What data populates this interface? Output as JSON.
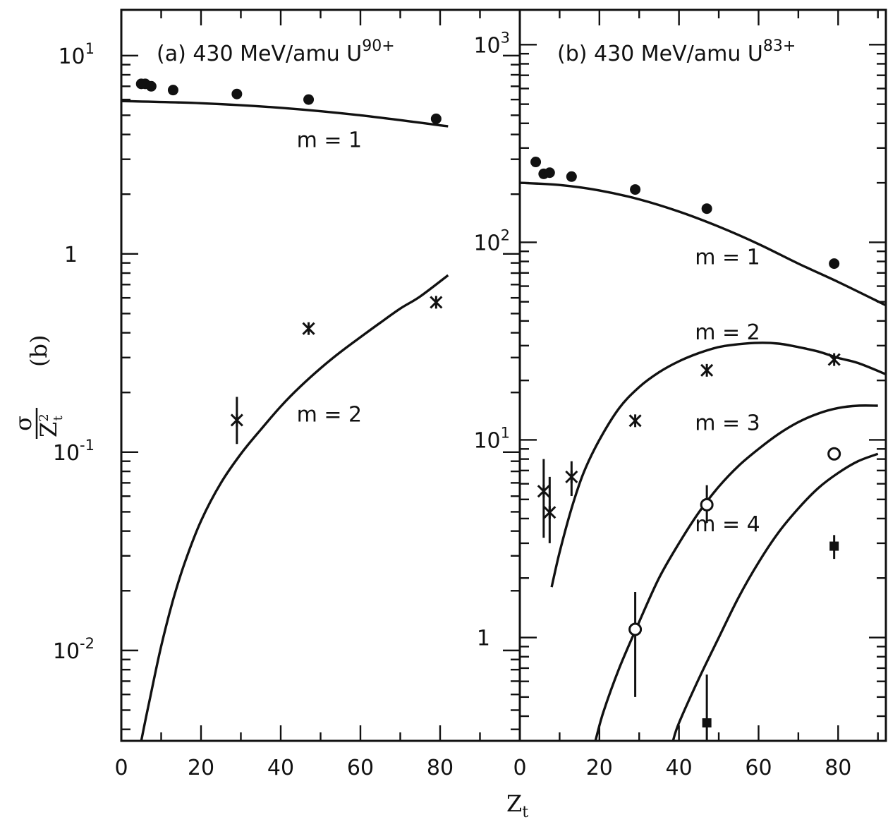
{
  "chart_data": [
    {
      "type": "scatter",
      "panel": "a",
      "title": "(a) 430 MeV/amu U",
      "title_sup": "90+",
      "xlabel": "Z",
      "xlabel_sub": "t",
      "ylabel": "(b)",
      "ylabel_fraction": {
        "numerator": "σ",
        "denominator": "Z",
        "denominator_sup": "2",
        "denominator_sub": "t"
      },
      "xlim": [
        0,
        100
      ],
      "ylim": [
        0.0035,
        17
      ],
      "yscale": "log",
      "xticks": [
        {
          "v": 0,
          "label": "0"
        },
        {
          "v": 20,
          "label": "20"
        },
        {
          "v": 40,
          "label": "40"
        },
        {
          "v": 60,
          "label": "60"
        },
        {
          "v": 80,
          "label": "80"
        }
      ],
      "yticks": [
        {
          "v": 0.01,
          "base": "10",
          "exp": "-2"
        },
        {
          "v": 0.1,
          "base": "10",
          "exp": "-1"
        },
        {
          "v": 1,
          "base": "1",
          "exp": ""
        },
        {
          "v": 10,
          "base": "10",
          "exp": "1"
        }
      ],
      "curves": [
        {
          "name": "m = 1",
          "x": [
            0,
            20,
            40,
            60,
            82
          ],
          "y": [
            5.9,
            5.75,
            5.45,
            5.0,
            4.4
          ]
        },
        {
          "name": "m = 2",
          "x": [
            5,
            7,
            10,
            13,
            16,
            20,
            25,
            30,
            35,
            40,
            45,
            50,
            55,
            60,
            65,
            70,
            75,
            82
          ],
          "y": [
            0.0035,
            0.0055,
            0.0105,
            0.018,
            0.028,
            0.045,
            0.07,
            0.098,
            0.13,
            0.17,
            0.215,
            0.265,
            0.32,
            0.38,
            0.45,
            0.53,
            0.61,
            0.78
          ]
        }
      ],
      "series": [
        {
          "name": "m = 1",
          "marker": "filled-circle",
          "points": [
            {
              "x": 5,
              "y": 7.2
            },
            {
              "x": 6,
              "y": 7.2
            },
            {
              "x": 7.5,
              "y": 7.0
            },
            {
              "x": 13,
              "y": 6.7
            },
            {
              "x": 29,
              "y": 6.4
            },
            {
              "x": 47,
              "y": 6.0
            },
            {
              "x": 79,
              "y": 4.8
            }
          ]
        },
        {
          "name": "m = 2",
          "marker": "asterisk",
          "points": [
            {
              "x": 29,
              "y": 0.145,
              "yerr": [
                0.11,
                0.19
              ]
            },
            {
              "x": 47,
              "y": 0.42
            },
            {
              "x": 79,
              "y": 0.57
            }
          ]
        }
      ],
      "annotations": [
        {
          "label": "m = 1",
          "x": 44,
          "y": 3.75
        },
        {
          "label": "m = 2",
          "x": 44,
          "y": 0.155
        }
      ]
    },
    {
      "type": "scatter",
      "panel": "b",
      "title": "(b) 430 MeV/amu U",
      "title_sup": "83+",
      "xlabel": "Z",
      "xlabel_sub": "t",
      "xlim": [
        0,
        92
      ],
      "ylim": [
        0.3,
        1500
      ],
      "yscale": "log",
      "xticks": [
        {
          "v": 0,
          "label": "0"
        },
        {
          "v": 20,
          "label": "20"
        },
        {
          "v": 40,
          "label": "40"
        },
        {
          "v": 60,
          "label": "60"
        },
        {
          "v": 80,
          "label": "80"
        }
      ],
      "yticks": [
        {
          "v": 1,
          "base": "1",
          "exp": ""
        },
        {
          "v": 10,
          "base": "10",
          "exp": "1"
        },
        {
          "v": 100,
          "base": "10",
          "exp": "2"
        },
        {
          "v": 1000,
          "base": "10",
          "exp": "3"
        }
      ],
      "curves": [
        {
          "name": "m = 1",
          "x": [
            0,
            10,
            20,
            30,
            40,
            50,
            60,
            70,
            80,
            92
          ],
          "y": [
            200,
            195,
            183,
            165,
            143,
            120,
            98,
            78,
            63,
            48
          ]
        },
        {
          "name": "m = 2",
          "x": [
            8,
            10,
            13,
            16,
            20,
            25,
            30,
            35,
            40,
            45,
            50,
            55,
            60,
            65,
            70,
            75,
            80,
            85,
            92
          ],
          "y": [
            1.8,
            2.7,
            4.5,
            6.8,
            10,
            14.5,
            18.5,
            22,
            25,
            27.5,
            29.5,
            30.5,
            31,
            30.7,
            29.5,
            28,
            26,
            24.5,
            21.5
          ]
        },
        {
          "name": "m = 3",
          "x": [
            19,
            21,
            25,
            30,
            35,
            40,
            45,
            50,
            55,
            60,
            65,
            70,
            75,
            80,
            85,
            90
          ],
          "y": [
            0.3,
            0.42,
            0.7,
            1.2,
            2.0,
            3.0,
            4.3,
            5.8,
            7.4,
            9.0,
            10.7,
            12.3,
            13.6,
            14.5,
            14.9,
            14.9
          ]
        },
        {
          "name": "m = 4",
          "x": [
            38.5,
            40,
            45,
            50,
            55,
            60,
            65,
            70,
            75,
            80,
            85,
            90
          ],
          "y": [
            0.3,
            0.37,
            0.62,
            1.0,
            1.6,
            2.4,
            3.4,
            4.5,
            5.7,
            6.8,
            7.8,
            8.5
          ]
        }
      ],
      "series": [
        {
          "name": "m = 1",
          "marker": "filled-circle",
          "points": [
            {
              "x": 4,
              "y": 255
            },
            {
              "x": 6,
              "y": 222
            },
            {
              "x": 7.5,
              "y": 225
            },
            {
              "x": 13,
              "y": 215
            },
            {
              "x": 29,
              "y": 185
            },
            {
              "x": 47,
              "y": 148
            },
            {
              "x": 79,
              "y": 78
            }
          ]
        },
        {
          "name": "m = 2",
          "marker": "asterisk",
          "points": [
            {
              "x": 6,
              "y": 5.5,
              "yerr": [
                3.2,
                8.0
              ]
            },
            {
              "x": 7.5,
              "y": 4.3,
              "yerr": [
                3.0,
                6.5
              ]
            },
            {
              "x": 13,
              "y": 6.5,
              "yerr": [
                5.2,
                7.8
              ]
            },
            {
              "x": 29,
              "y": 12.5
            },
            {
              "x": 47,
              "y": 22.5
            },
            {
              "x": 79,
              "y": 25.5
            }
          ]
        },
        {
          "name": "m = 3",
          "marker": "open-circle",
          "points": [
            {
              "x": 29,
              "y": 1.1,
              "yerr": [
                0.5,
                1.7
              ]
            },
            {
              "x": 47,
              "y": 4.7,
              "yerr": [
                3.8,
                5.9
              ]
            },
            {
              "x": 79,
              "y": 8.5
            }
          ]
        },
        {
          "name": "m = 4",
          "marker": "filled-square",
          "points": [
            {
              "x": 47,
              "y": 0.37,
              "yerr": [
                0.3,
                0.65
              ]
            },
            {
              "x": 79,
              "y": 2.9,
              "yerr": [
                2.5,
                3.3
              ]
            }
          ]
        }
      ],
      "annotations": [
        {
          "label": "m = 1",
          "x": 44,
          "y": 84
        },
        {
          "label": "m = 2",
          "x": 44,
          "y": 35
        },
        {
          "label": "m = 3",
          "x": 44,
          "y": 12.2
        },
        {
          "label": "m = 4",
          "x": 44,
          "y": 3.75
        }
      ]
    }
  ]
}
